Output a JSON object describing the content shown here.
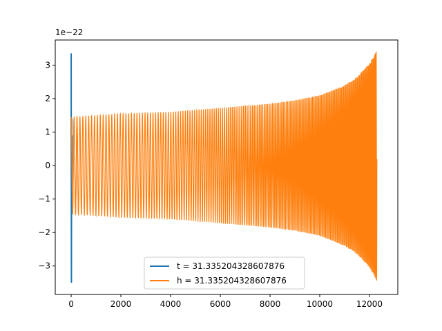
{
  "chart_data": {
    "type": "line",
    "title": "",
    "xlabel": "",
    "ylabel": "",
    "y_offset_label": "1e−22",
    "xlim": [
      -640,
      13140
    ],
    "ylim": [
      -3.85,
      3.75
    ],
    "x_ticks": [
      0,
      2000,
      4000,
      6000,
      8000,
      10000,
      12000
    ],
    "x_tick_labels": [
      "0",
      "2000",
      "4000",
      "6000",
      "8000",
      "10000",
      "12000"
    ],
    "y_ticks": [
      -3,
      -2,
      -1,
      0,
      1,
      2,
      3
    ],
    "y_tick_labels": [
      "−3",
      "−2",
      "−1",
      "0",
      "1",
      "2",
      "3"
    ],
    "grid": false,
    "legend_position": "bottom-center",
    "series": [
      {
        "name": "t = 31.335204328607876",
        "color": "#1f77b4",
        "description": "narrow spike near x=0",
        "points": [
          [
            0,
            3.35
          ],
          [
            10,
            -3.5
          ],
          [
            20,
            1.4
          ],
          [
            30,
            -1.2
          ],
          [
            40,
            0.9
          ]
        ]
      },
      {
        "name": "h = 31.335204328607876",
        "color": "#ff7f0e",
        "description": "chirp oscillation with growing amplitude",
        "x_start": 0,
        "x_end": 12300,
        "envelope_x": [
          0,
          2000,
          4000,
          6000,
          8000,
          9000,
          10000,
          11000,
          11500,
          12000,
          12300
        ],
        "envelope_y": [
          1.45,
          1.55,
          1.6,
          1.72,
          1.85,
          1.95,
          2.1,
          2.4,
          2.65,
          3.05,
          3.45
        ]
      }
    ]
  }
}
